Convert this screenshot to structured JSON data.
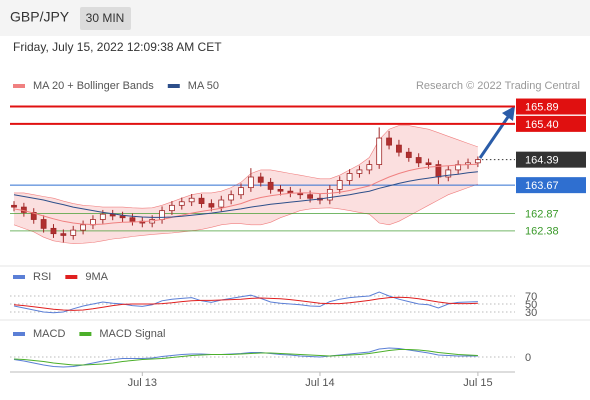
{
  "header": {
    "symbol": "GBP/JPY",
    "timeframe": "30 MIN",
    "timestamp": "Friday, July 15, 2022 12:09:38 AM CET"
  },
  "chart_data": [
    {
      "type": "candlestick",
      "annotation": "Research © 2022 Trading Central",
      "categories": [
        null,
        null,
        null,
        null,
        null,
        null,
        null,
        null,
        null,
        null,
        null,
        null,
        null,
        "Jul 13",
        null,
        null,
        null,
        null,
        null,
        null,
        null,
        null,
        null,
        null,
        null,
        null,
        null,
        null,
        null,
        null,
        null,
        "Jul 14",
        null,
        null,
        null,
        null,
        null,
        null,
        null,
        null,
        null,
        null,
        null,
        null,
        null,
        null,
        null,
        "Jul 15"
      ],
      "open": [
        163.1,
        163.05,
        162.9,
        162.7,
        162.45,
        162.3,
        162.25,
        162.4,
        162.55,
        162.7,
        162.85,
        162.8,
        162.75,
        162.65,
        162.6,
        162.7,
        162.95,
        163.1,
        163.2,
        163.3,
        163.15,
        163.05,
        163.25,
        163.4,
        163.6,
        163.9,
        163.75,
        163.55,
        163.5,
        163.45,
        163.4,
        163.3,
        163.25,
        163.55,
        163.8,
        164.0,
        164.1,
        164.25,
        165.0,
        164.8,
        164.6,
        164.45,
        164.3,
        164.25,
        163.9,
        164.1,
        164.25,
        164.3
      ],
      "high": [
        163.22,
        163.17,
        163.02,
        162.82,
        162.57,
        162.42,
        162.52,
        162.67,
        162.82,
        162.97,
        162.97,
        162.92,
        162.87,
        162.77,
        162.82,
        163.07,
        163.22,
        163.32,
        163.42,
        163.42,
        163.27,
        163.37,
        163.52,
        163.72,
        164.15,
        164.02,
        163.87,
        163.67,
        163.62,
        163.57,
        163.52,
        163.42,
        163.67,
        163.92,
        164.12,
        164.22,
        164.37,
        165.3,
        165.2,
        164.95,
        164.72,
        164.57,
        164.42,
        164.37,
        164.22,
        164.37,
        164.42,
        164.48
      ],
      "low": [
        162.93,
        162.78,
        162.58,
        162.33,
        162.18,
        162.05,
        162.13,
        162.28,
        162.43,
        162.58,
        162.68,
        162.63,
        162.53,
        162.48,
        162.48,
        162.58,
        162.83,
        162.98,
        163.08,
        163.03,
        162.93,
        162.93,
        163.13,
        163.28,
        163.48,
        163.63,
        163.43,
        163.38,
        163.33,
        163.28,
        163.18,
        163.13,
        163.13,
        163.43,
        163.68,
        163.88,
        163.98,
        164.13,
        164.68,
        164.48,
        164.33,
        164.18,
        164.13,
        163.7,
        163.78,
        163.98,
        164.13,
        164.18
      ],
      "close": [
        163.05,
        162.9,
        162.7,
        162.45,
        162.3,
        162.25,
        162.4,
        162.55,
        162.7,
        162.85,
        162.8,
        162.75,
        162.65,
        162.6,
        162.7,
        162.95,
        163.1,
        163.2,
        163.3,
        163.15,
        163.05,
        163.25,
        163.4,
        163.6,
        163.9,
        163.75,
        163.55,
        163.5,
        163.45,
        163.4,
        163.3,
        163.25,
        163.55,
        163.8,
        164.0,
        164.1,
        164.25,
        165.0,
        164.8,
        164.6,
        164.45,
        164.3,
        164.25,
        163.9,
        164.1,
        164.25,
        164.3,
        164.39
      ],
      "up_color": "#ffffff",
      "down_color": "#b03030",
      "series": [
        {
          "name": "MA 20 + Bollinger Bands",
          "color": "#f08080",
          "values": [
            163.0,
            162.95,
            162.88,
            162.8,
            162.72,
            162.65,
            162.6,
            162.57,
            162.56,
            162.57,
            162.6,
            162.62,
            162.63,
            162.64,
            162.66,
            162.7,
            162.76,
            162.82,
            162.88,
            162.93,
            162.97,
            163.02,
            163.08,
            163.15,
            163.25,
            163.32,
            163.37,
            163.41,
            163.44,
            163.45,
            163.45,
            163.43,
            163.44,
            163.47,
            163.52,
            163.58,
            163.65,
            163.78,
            163.9,
            164.0,
            164.08,
            164.14,
            164.18,
            164.2,
            164.22,
            164.24,
            164.25,
            164.26
          ],
          "upper": [
            163.45,
            163.45,
            163.4,
            163.35,
            163.3,
            163.22,
            163.15,
            163.1,
            163.08,
            163.05,
            163.05,
            163.05,
            163.03,
            163.02,
            163.03,
            163.1,
            163.2,
            163.3,
            163.4,
            163.45,
            163.45,
            163.5,
            163.6,
            163.75,
            164.0,
            164.1,
            164.1,
            164.05,
            164.0,
            163.95,
            163.9,
            163.85,
            163.85,
            163.95,
            164.1,
            164.25,
            164.45,
            164.95,
            165.25,
            165.35,
            165.35,
            165.3,
            165.25,
            165.15,
            165.05,
            164.95,
            164.85,
            164.75
          ],
          "lower": [
            162.55,
            162.45,
            162.35,
            162.2,
            162.1,
            162.05,
            162.02,
            162.03,
            162.05,
            162.1,
            162.15,
            162.18,
            162.22,
            162.25,
            162.28,
            162.3,
            162.32,
            162.35,
            162.38,
            162.42,
            162.48,
            162.55,
            162.58,
            162.58,
            162.55,
            162.55,
            162.62,
            162.75,
            162.85,
            162.95,
            163.0,
            163.02,
            163.03,
            163.0,
            162.95,
            162.9,
            162.85,
            162.6,
            162.55,
            162.65,
            162.8,
            162.95,
            163.1,
            163.25,
            163.4,
            163.5,
            163.6,
            163.7
          ]
        },
        {
          "name": "MA 50",
          "color": "#2d4f8a",
          "values": [
            163.4,
            163.35,
            163.3,
            163.25,
            163.18,
            163.12,
            163.05,
            163.0,
            162.95,
            162.9,
            162.86,
            162.82,
            162.79,
            162.77,
            162.76,
            162.76,
            162.77,
            162.79,
            162.82,
            162.85,
            162.88,
            162.92,
            162.96,
            163.0,
            163.05,
            163.09,
            163.13,
            163.16,
            163.19,
            163.22,
            163.25,
            163.28,
            163.32,
            163.36,
            163.4,
            163.45,
            163.5,
            163.58,
            163.65,
            163.72,
            163.78,
            163.83,
            163.87,
            163.91,
            163.95,
            163.98,
            164.02,
            164.05
          ]
        }
      ],
      "ylim": [
        161.5,
        166.3
      ],
      "levels": [
        {
          "value": 165.89,
          "color": "#e01010",
          "boxed": true,
          "dash": false
        },
        {
          "value": {
            "value": 165.4,
            "label": "165.40"
          },
          "color": "#e01010",
          "boxed": true,
          "dash": false
        },
        {
          "value": 164.39,
          "color": "#333333",
          "boxed": true,
          "dash": true
        },
        {
          "value": 163.67,
          "color": "#2f6fd0",
          "boxed": true,
          "dash": false
        },
        {
          "value": 162.87,
          "color": "#3a9a2a",
          "boxed": false,
          "dash": false
        },
        {
          "value": 162.38,
          "color": "#3a9a2a",
          "boxed": false,
          "dash": false
        }
      ]
    },
    {
      "type": "line",
      "ylim": [
        0,
        100
      ],
      "yticks": [
        70,
        50,
        30
      ],
      "series": [
        {
          "name": "RSI",
          "color": "#5b7fd6",
          "values": [
            45,
            40,
            35,
            30,
            28,
            30,
            38,
            45,
            50,
            55,
            52,
            50,
            46,
            44,
            48,
            58,
            62,
            64,
            66,
            58,
            54,
            60,
            64,
            68,
            72,
            64,
            55,
            52,
            50,
            48,
            45,
            44,
            56,
            62,
            66,
            68,
            70,
            80,
            70,
            62,
            56,
            50,
            48,
            40,
            50,
            54,
            55,
            56
          ]
        },
        {
          "name": "9MA",
          "color": "#e02020",
          "values": [
            48,
            46,
            43,
            40,
            37,
            35,
            34,
            35,
            38,
            42,
            46,
            49,
            50,
            50,
            50,
            51,
            53,
            56,
            58,
            59,
            59,
            60,
            61,
            62,
            64,
            65,
            64,
            63,
            61,
            58,
            55,
            52,
            51,
            51,
            53,
            56,
            59,
            63,
            66,
            67,
            66,
            63,
            59,
            55,
            52,
            51,
            51,
            52
          ]
        }
      ]
    },
    {
      "type": "line",
      "ylim": [
        -0.3,
        0.3
      ],
      "yticks": [
        0
      ],
      "series": [
        {
          "name": "MACD",
          "color": "#5b7fd6",
          "values": [
            -0.05,
            -0.08,
            -0.12,
            -0.16,
            -0.19,
            -0.2,
            -0.19,
            -0.16,
            -0.12,
            -0.08,
            -0.05,
            -0.03,
            -0.03,
            -0.03,
            -0.02,
            0.01,
            0.03,
            0.05,
            0.06,
            0.06,
            0.05,
            0.05,
            0.06,
            0.07,
            0.09,
            0.09,
            0.07,
            0.05,
            0.04,
            0.02,
            0.01,
            0.0,
            0.02,
            0.04,
            0.06,
            0.08,
            0.1,
            0.16,
            0.18,
            0.17,
            0.14,
            0.11,
            0.08,
            0.04,
            0.03,
            0.02,
            0.02,
            0.02
          ]
        },
        {
          "name": "MACD Signal",
          "color": "#4caf2a",
          "values": [
            -0.04,
            -0.05,
            -0.07,
            -0.09,
            -0.12,
            -0.14,
            -0.16,
            -0.16,
            -0.15,
            -0.14,
            -0.12,
            -0.09,
            -0.07,
            -0.05,
            -0.04,
            -0.03,
            -0.01,
            0.01,
            0.03,
            0.04,
            0.05,
            0.05,
            0.05,
            0.06,
            0.07,
            0.08,
            0.08,
            0.07,
            0.06,
            0.05,
            0.04,
            0.03,
            0.02,
            0.03,
            0.04,
            0.05,
            0.07,
            0.1,
            0.13,
            0.15,
            0.15,
            0.14,
            0.12,
            0.09,
            0.07,
            0.05,
            0.04,
            0.03
          ]
        }
      ]
    }
  ]
}
